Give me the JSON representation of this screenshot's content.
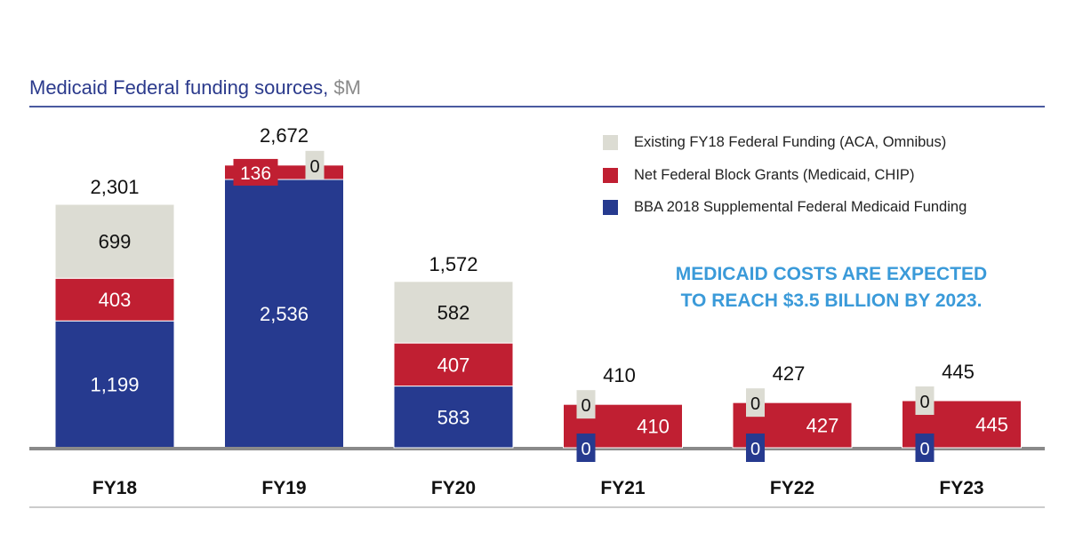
{
  "chart_data": {
    "type": "bar",
    "stacked": true,
    "title": "Medicaid Federal funding sources,",
    "unit": "$M",
    "categories": [
      "FY18",
      "FY19",
      "FY20",
      "FY21",
      "FY22",
      "FY23"
    ],
    "series": [
      {
        "name": "BBA 2018 Supplemental Federal Medicaid Funding",
        "color": "#263a8f",
        "values": [
          1199,
          2536,
          583,
          0,
          0,
          0
        ]
      },
      {
        "name": "Net Federal Block Grants (Medicaid, CHIP)",
        "color": "#c01f32",
        "values": [
          403,
          136,
          407,
          410,
          427,
          445
        ]
      },
      {
        "name": "Existing FY18 Federal Funding (ACA, Omnibus)",
        "color": "#dcdcd3",
        "values": [
          699,
          0,
          582,
          0,
          0,
          0
        ]
      }
    ],
    "totals": [
      "2,301",
      "2,672",
      "1,572",
      "410",
      "427",
      "445"
    ],
    "legend_position": "top-right",
    "grid": false,
    "annotation": [
      "MEDICAID COSTS ARE EXPECTED",
      "TO REACH $3.5 BILLION BY 2023."
    ]
  }
}
